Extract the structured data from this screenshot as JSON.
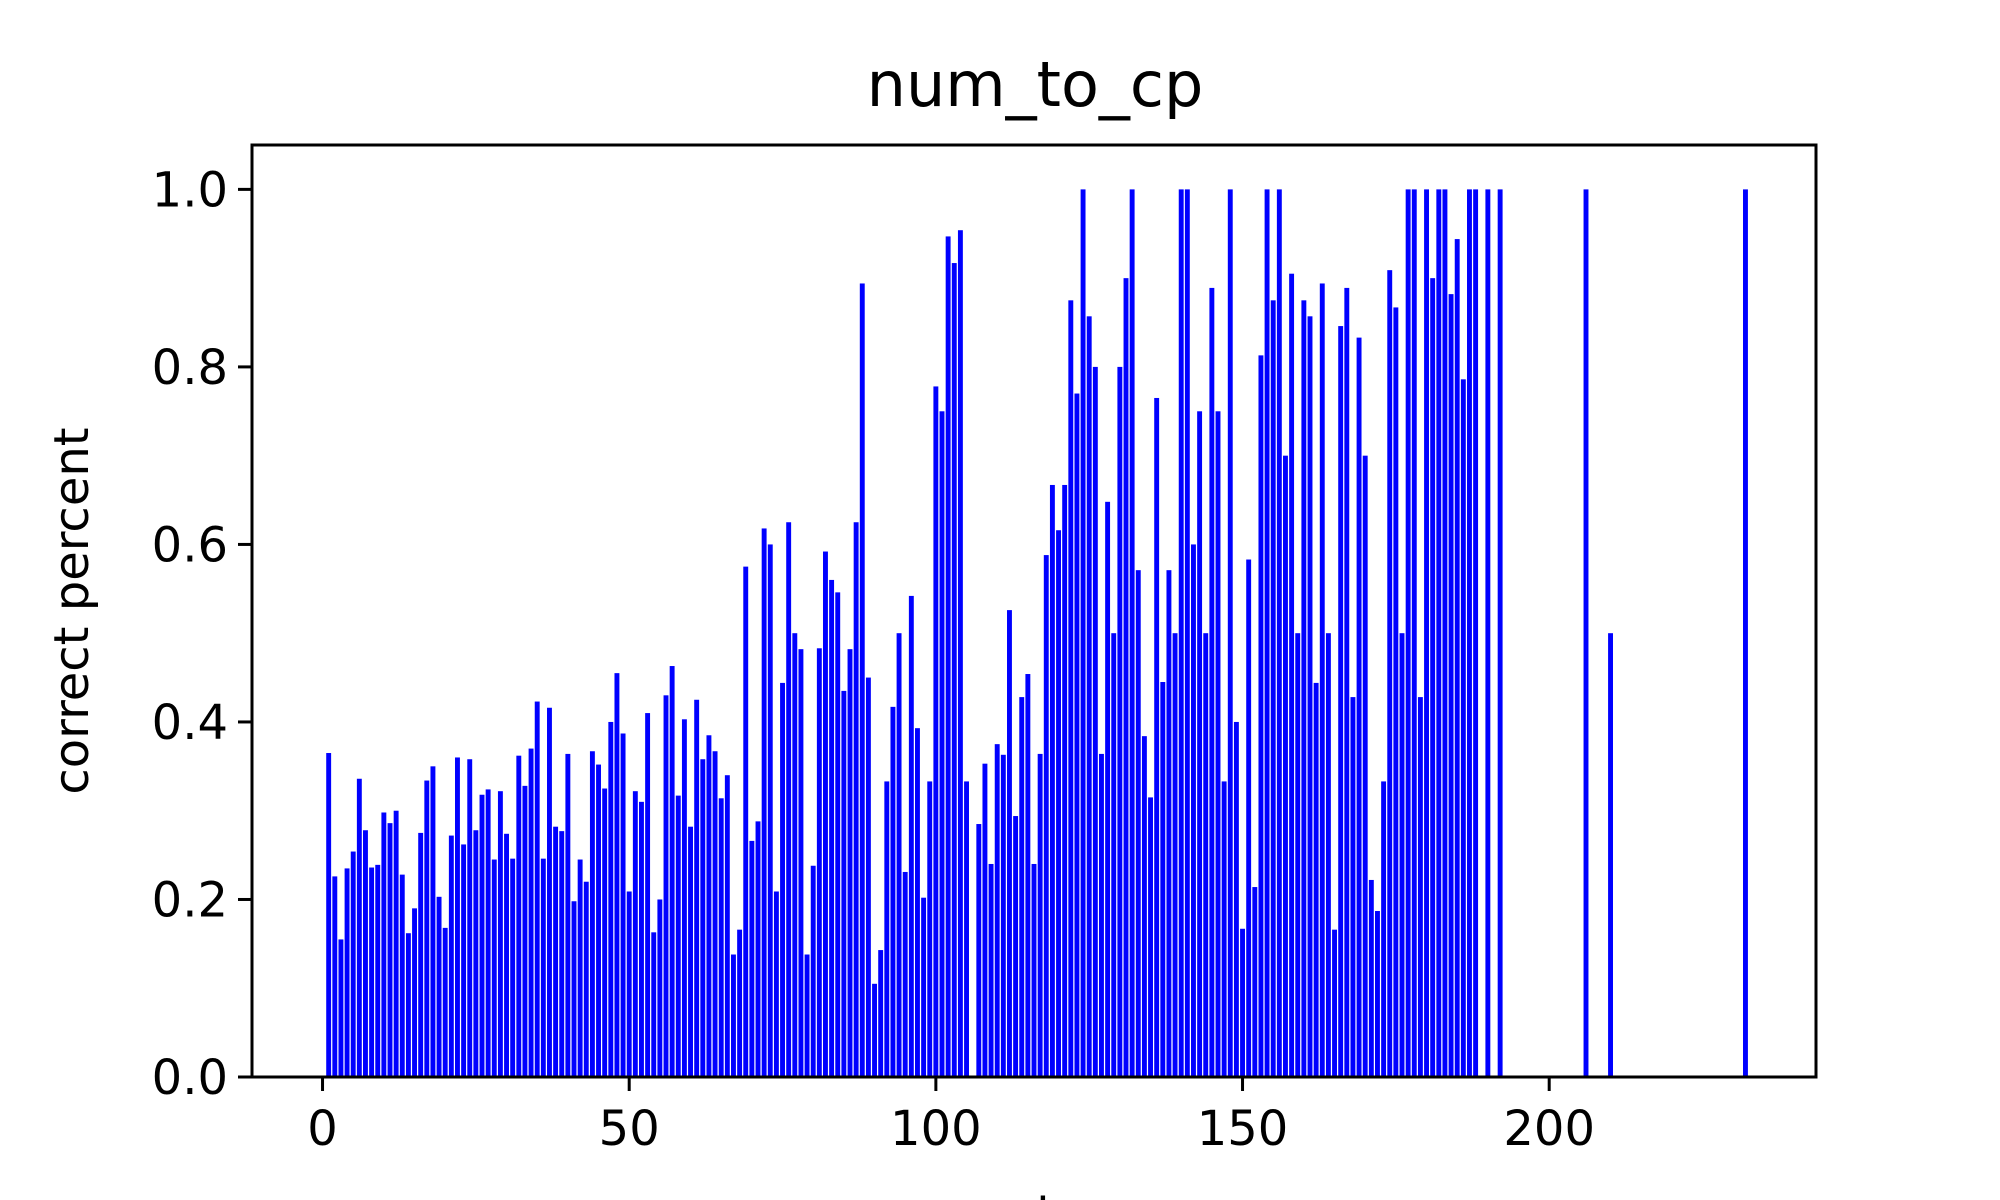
{
  "chart_data": {
    "type": "bar",
    "title": "num_to_cp",
    "xlabel": "numbers",
    "ylabel": "correct percent",
    "xlim": [
      -11.5,
      243.5
    ],
    "ylim": [
      0,
      1.05
    ],
    "xticks": [
      0,
      50,
      100,
      150,
      200
    ],
    "yticks": [
      0.0,
      0.2,
      0.4,
      0.6,
      0.8,
      1.0
    ],
    "xtick_labels": [
      "0",
      "50",
      "100",
      "150",
      "200"
    ],
    "ytick_labels": [
      "0.0",
      "0.2",
      "0.4",
      "0.6",
      "0.8",
      "1.0"
    ],
    "bar_color": "#0000ff",
    "grid": false,
    "x": [
      1,
      2,
      3,
      4,
      5,
      6,
      7,
      8,
      9,
      10,
      11,
      12,
      13,
      14,
      15,
      16,
      17,
      18,
      19,
      20,
      21,
      22,
      23,
      24,
      25,
      26,
      27,
      28,
      29,
      30,
      31,
      32,
      33,
      34,
      35,
      36,
      37,
      38,
      39,
      40,
      41,
      42,
      43,
      44,
      45,
      46,
      47,
      48,
      49,
      50,
      51,
      52,
      53,
      54,
      55,
      56,
      57,
      58,
      59,
      60,
      61,
      62,
      63,
      64,
      65,
      66,
      67,
      68,
      69,
      70,
      71,
      72,
      73,
      74,
      75,
      76,
      77,
      78,
      79,
      80,
      81,
      82,
      83,
      84,
      85,
      86,
      87,
      88,
      89,
      90,
      91,
      92,
      93,
      94,
      95,
      96,
      97,
      98,
      99,
      100,
      101,
      102,
      103,
      104,
      105,
      107,
      108,
      109,
      110,
      111,
      112,
      113,
      114,
      115,
      116,
      117,
      118,
      119,
      120,
      121,
      122,
      123,
      124,
      125,
      126,
      127,
      128,
      129,
      130,
      131,
      132,
      133,
      134,
      135,
      136,
      137,
      138,
      139,
      140,
      141,
      142,
      143,
      144,
      145,
      146,
      147,
      148,
      149,
      150,
      151,
      152,
      153,
      154,
      155,
      156,
      157,
      158,
      159,
      160,
      161,
      162,
      163,
      164,
      165,
      166,
      167,
      168,
      169,
      170,
      171,
      172,
      173,
      174,
      175,
      176,
      177,
      178,
      179,
      180,
      181,
      182,
      183,
      184,
      185,
      186,
      187,
      188,
      190,
      192,
      206,
      210,
      232
    ],
    "values": [
      0.365,
      0.226,
      0.155,
      0.235,
      0.254,
      0.336,
      0.278,
      0.236,
      0.239,
      0.298,
      0.286,
      0.3,
      0.228,
      0.162,
      0.19,
      0.275,
      0.334,
      0.35,
      0.203,
      0.168,
      0.272,
      0.36,
      0.262,
      0.358,
      0.278,
      0.318,
      0.324,
      0.245,
      0.322,
      0.274,
      0.246,
      0.362,
      0.328,
      0.37,
      0.423,
      0.246,
      0.416,
      0.282,
      0.277,
      0.364,
      0.198,
      0.245,
      0.22,
      0.367,
      0.352,
      0.325,
      0.4,
      0.455,
      0.387,
      0.209,
      0.322,
      0.31,
      0.41,
      0.163,
      0.2,
      0.43,
      0.463,
      0.317,
      0.403,
      0.282,
      0.425,
      0.358,
      0.385,
      0.367,
      0.314,
      0.34,
      0.138,
      0.166,
      0.575,
      0.266,
      0.288,
      0.618,
      0.6,
      0.209,
      0.444,
      0.625,
      0.5,
      0.482,
      0.138,
      0.238,
      0.483,
      0.592,
      0.56,
      0.546,
      0.435,
      0.482,
      0.625,
      0.894,
      0.45,
      0.105,
      0.143,
      0.333,
      0.417,
      0.5,
      0.231,
      0.542,
      0.393,
      0.202,
      0.333,
      0.778,
      0.75,
      0.947,
      0.917,
      0.954,
      0.333,
      0.285,
      0.353,
      0.24,
      0.375,
      0.363,
      0.526,
      0.294,
      0.428,
      0.454,
      0.24,
      0.364,
      0.588,
      0.667,
      0.616,
      0.667,
      0.875,
      0.77,
      1.0,
      0.857,
      0.8,
      0.364,
      0.648,
      0.5,
      0.8,
      0.9,
      1.0,
      0.571,
      0.384,
      0.315,
      0.765,
      0.445,
      0.571,
      0.5,
      1.0,
      1.0,
      0.6,
      0.75,
      0.5,
      0.889,
      0.75,
      0.333,
      1.0,
      0.4,
      0.167,
      0.583,
      0.214,
      0.813,
      1.0,
      0.875,
      1.0,
      0.7,
      0.905,
      0.5,
      0.875,
      0.857,
      0.444,
      0.894,
      0.5,
      0.166,
      0.846,
      0.889,
      0.428,
      0.833,
      0.7,
      0.222,
      0.187,
      0.333,
      0.909,
      0.867,
      0.5,
      1.0,
      1.0,
      0.428,
      1.0,
      0.9,
      1.0,
      1.0,
      0.882,
      0.944,
      0.786,
      1.0,
      1.0,
      1.0,
      1.0,
      1.0,
      0.5,
      1.0
    ]
  }
}
